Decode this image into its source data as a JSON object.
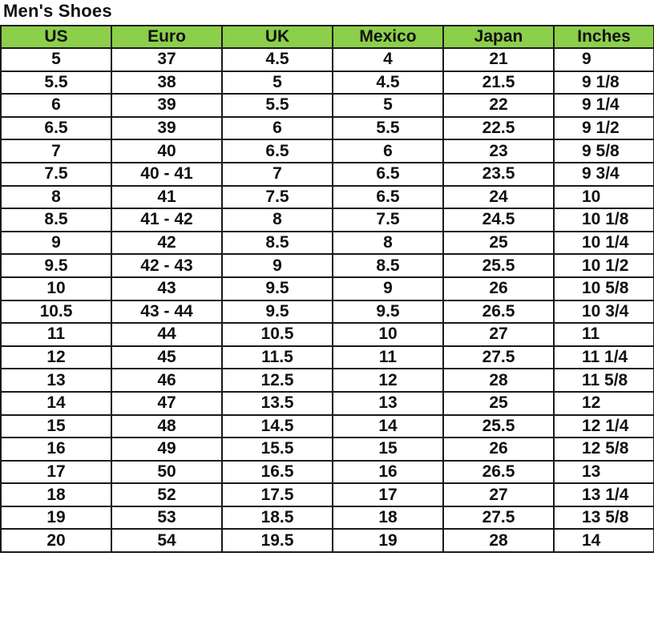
{
  "title": "Men's Shoes",
  "header_color": "#8ccf4a",
  "columns": [
    "US",
    "Euro",
    "UK",
    "Mexico",
    "Japan",
    "Inches"
  ],
  "rows": [
    [
      "5",
      "37",
      "4.5",
      "4",
      "21",
      "9"
    ],
    [
      "5.5",
      "38",
      "5",
      "4.5",
      "21.5",
      "9 1/8"
    ],
    [
      "6",
      "39",
      "5.5",
      "5",
      "22",
      "9 1/4"
    ],
    [
      "6.5",
      "39",
      "6",
      "5.5",
      "22.5",
      "9 1/2"
    ],
    [
      "7",
      "40",
      "6.5",
      "6",
      "23",
      "9 5/8"
    ],
    [
      "7.5",
      "40 - 41",
      "7",
      "6.5",
      "23.5",
      "9 3/4"
    ],
    [
      "8",
      "41",
      "7.5",
      "6.5",
      "24",
      "10"
    ],
    [
      "8.5",
      "41 - 42",
      "8",
      "7.5",
      "24.5",
      "10 1/8"
    ],
    [
      "9",
      "42",
      "8.5",
      "8",
      "25",
      "10 1/4"
    ],
    [
      "9.5",
      "42 - 43",
      "9",
      "8.5",
      "25.5",
      "10 1/2"
    ],
    [
      "10",
      "43",
      "9.5",
      "9",
      "26",
      "10 5/8"
    ],
    [
      "10.5",
      "43 - 44",
      "9.5",
      "9.5",
      "26.5",
      "10 3/4"
    ],
    [
      "11",
      "44",
      "10.5",
      "10",
      "27",
      "11"
    ],
    [
      "12",
      "45",
      "11.5",
      "11",
      "27.5",
      "11 1/4"
    ],
    [
      "13",
      "46",
      "12.5",
      "12",
      "28",
      "11 5/8"
    ],
    [
      "14",
      "47",
      "13.5",
      "13",
      "25",
      "12"
    ],
    [
      "15",
      "48",
      "14.5",
      "14",
      "25.5",
      "12 1/4"
    ],
    [
      "16",
      "49",
      "15.5",
      "15",
      "26",
      "12 5/8"
    ],
    [
      "17",
      "50",
      "16.5",
      "16",
      "26.5",
      "13"
    ],
    [
      "18",
      "52",
      "17.5",
      "17",
      "27",
      "13 1/4"
    ],
    [
      "19",
      "53",
      "18.5",
      "18",
      "27.5",
      "13 5/8"
    ],
    [
      "20",
      "54",
      "19.5",
      "19",
      "28",
      "14"
    ]
  ]
}
